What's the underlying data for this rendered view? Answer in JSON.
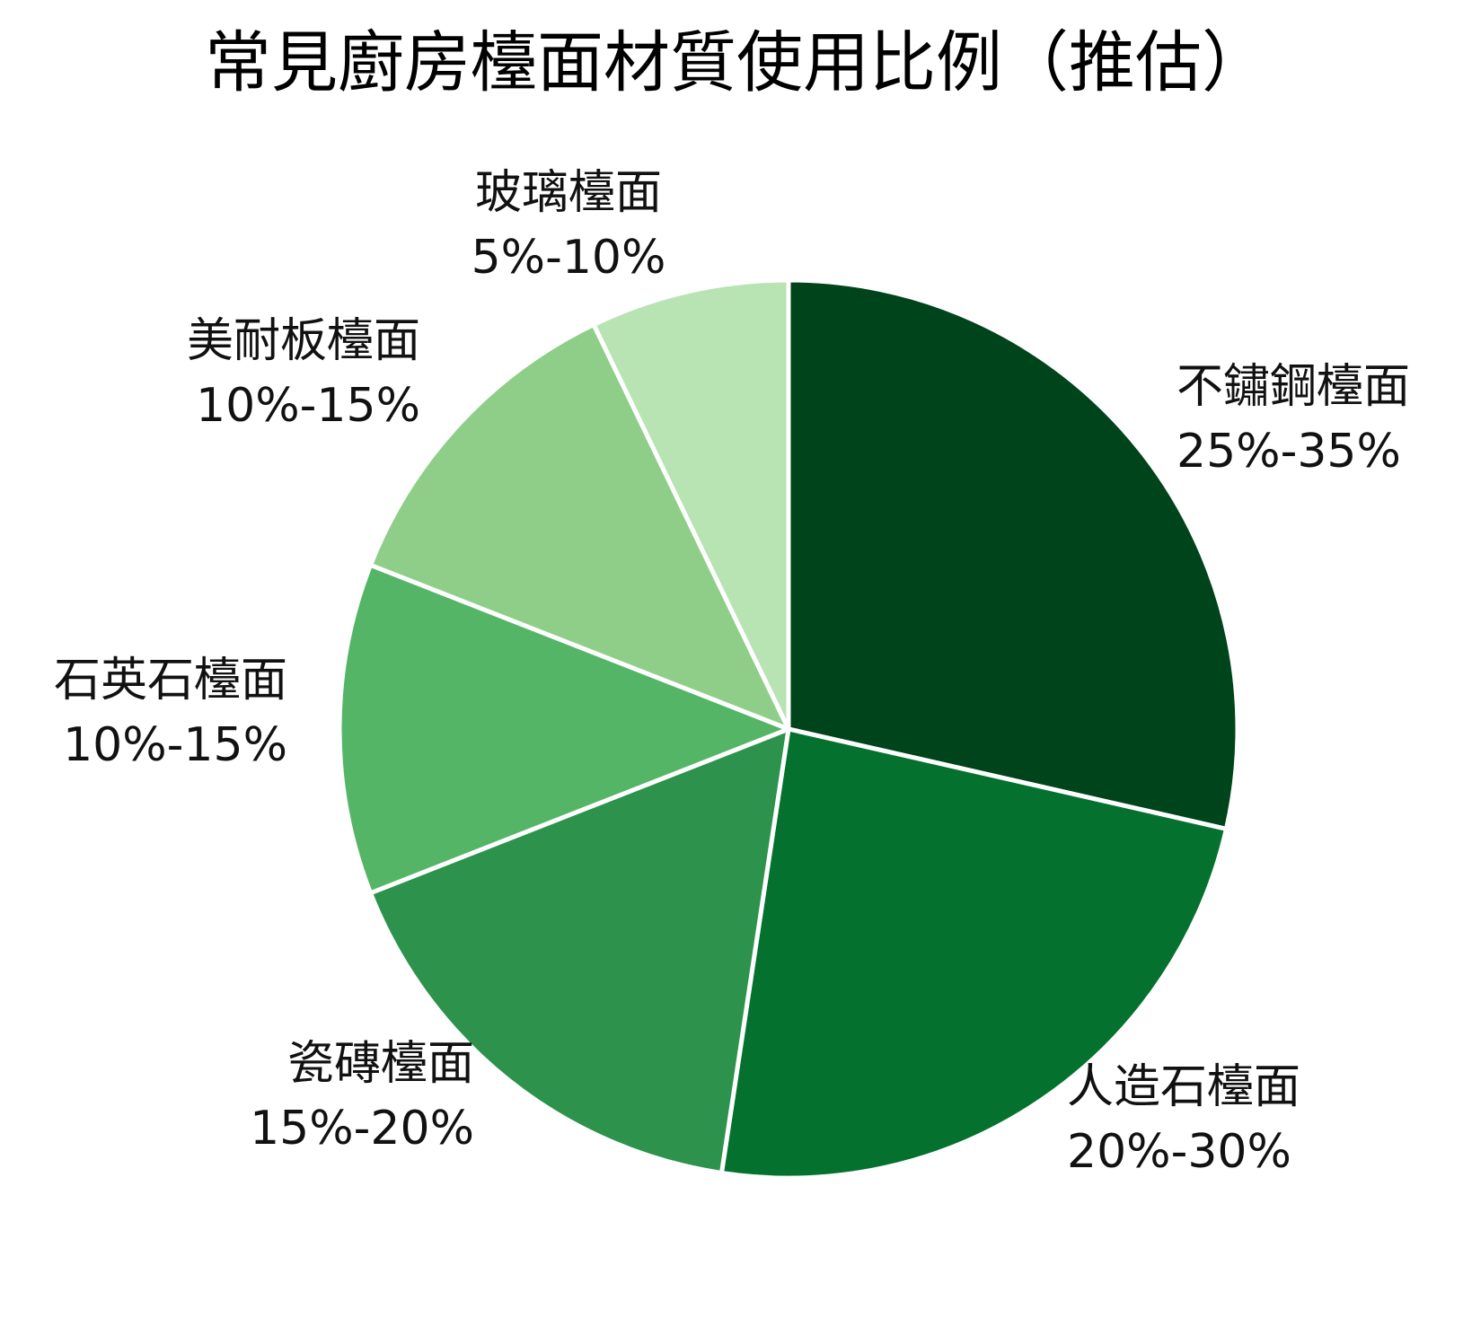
{
  "chart_data": {
    "type": "pie",
    "title": "常見廚房檯面材質使用比例（推估）",
    "slices": [
      {
        "name": "不鏽鋼檯面",
        "range": "25%-35%",
        "value": 30,
        "color": "#00441b"
      },
      {
        "name": "人造石檯面",
        "range": "20%-30%",
        "value": 25,
        "color": "#05712f"
      },
      {
        "name": "瓷磚檯面",
        "range": "15%-20%",
        "value": 17.5,
        "color": "#2d924b"
      },
      {
        "name": "石英石檯面",
        "range": "10%-15%",
        "value": 12.5,
        "color": "#55b567"
      },
      {
        "name": "美耐板檯面",
        "range": "10%-15%",
        "value": 12.5,
        "color": "#8fce88"
      },
      {
        "name": "玻璃檯面",
        "range": "5%-10%",
        "value": 7.5,
        "color": "#b8e3b2"
      }
    ],
    "start_angle": "top",
    "direction": "clockwise",
    "legend": "none"
  }
}
